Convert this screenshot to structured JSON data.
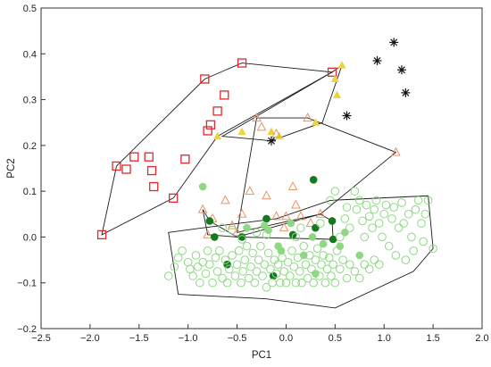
{
  "chart_data": {
    "type": "scatter",
    "title": "",
    "xlabel": "PC1",
    "ylabel": "PC2",
    "xlim": [
      -2.5,
      2.0
    ],
    "ylim": [
      -0.2,
      0.5
    ],
    "xticks": [
      "−2.5",
      "−2.0",
      "−1.5",
      "−1.0",
      "−0.5",
      "0.0",
      "0.5",
      "1.0",
      "1.5",
      "2.0"
    ],
    "yticks": [
      "−0.2",
      "−0.1",
      "0.0",
      "0.1",
      "0.2",
      "0.3",
      "0.4",
      "0.5"
    ],
    "xtick_values": [
      -2.5,
      -2.0,
      -1.5,
      -1.0,
      -0.5,
      0.0,
      0.5,
      1.0,
      1.5,
      2.0
    ],
    "ytick_values": [
      -0.2,
      -0.1,
      0.0,
      0.1,
      0.2,
      0.3,
      0.4,
      0.5
    ],
    "grid": false,
    "legend": "none",
    "series": [
      {
        "marker": "square-open",
        "color": "#e0282d",
        "points": [
          [
            -1.88,
            0.005
          ],
          [
            -1.73,
            0.155
          ],
          [
            -1.63,
            0.148
          ],
          [
            -1.55,
            0.175
          ],
          [
            -1.4,
            0.175
          ],
          [
            -1.37,
            0.145
          ],
          [
            -1.35,
            0.11
          ],
          [
            -1.15,
            0.085
          ],
          [
            -1.03,
            0.17
          ],
          [
            -0.83,
            0.345
          ],
          [
            -0.8,
            0.232
          ],
          [
            -0.77,
            0.245
          ],
          [
            -0.7,
            0.275
          ],
          [
            -0.63,
            0.31
          ],
          [
            -0.45,
            0.38
          ],
          [
            0.47,
            0.36
          ]
        ]
      },
      {
        "marker": "asterisk",
        "color": "#111111",
        "points": [
          [
            -0.15,
            0.21
          ],
          [
            0.62,
            0.265
          ],
          [
            0.93,
            0.385
          ],
          [
            1.1,
            0.425
          ],
          [
            1.18,
            0.365
          ],
          [
            1.22,
            0.315
          ]
        ]
      },
      {
        "marker": "triangle-filled",
        "color": "#f0d23c",
        "points": [
          [
            -0.7,
            0.22
          ],
          [
            -0.45,
            0.23
          ],
          [
            -0.15,
            0.23
          ],
          [
            -0.07,
            0.22
          ],
          [
            0.3,
            0.25
          ],
          [
            0.5,
            0.345
          ],
          [
            0.52,
            0.31
          ],
          [
            0.57,
            0.375
          ]
        ]
      },
      {
        "marker": "triangle-open",
        "color": "#e8946a",
        "points": [
          [
            -0.3,
            0.26
          ],
          [
            -0.25,
            0.24
          ],
          [
            -0.1,
            0.225
          ],
          [
            0.22,
            0.26
          ],
          [
            1.12,
            0.185
          ],
          [
            -0.85,
            0.06
          ],
          [
            -0.75,
            0.04
          ],
          [
            -0.62,
            0.08
          ],
          [
            -0.55,
            0.025
          ],
          [
            -0.45,
            0.05
          ],
          [
            -0.5,
            0.01
          ],
          [
            -0.37,
            0.1
          ],
          [
            -0.2,
            0.09
          ],
          [
            -0.1,
            0.045
          ],
          [
            -0.02,
            0.02
          ],
          [
            0.0,
            0.045
          ],
          [
            0.07,
            0.11
          ],
          [
            0.1,
            0.07
          ],
          [
            0.15,
            0.045
          ],
          [
            0.25,
            0.03
          ],
          [
            0.35,
            0.05
          ],
          [
            -0.8,
            0.005
          ]
        ]
      },
      {
        "marker": "circle-filled",
        "color": "#157a1e",
        "points": [
          [
            -0.78,
            0.035
          ],
          [
            -0.73,
            0.0
          ],
          [
            -0.6,
            -0.06
          ],
          [
            -0.45,
            0.0
          ],
          [
            -0.2,
            0.04
          ],
          [
            -0.13,
            -0.085
          ],
          [
            0.07,
            0.005
          ],
          [
            0.28,
            0.125
          ],
          [
            0.3,
            0.02
          ],
          [
            0.47,
            0.035
          ],
          [
            0.48,
            -0.005
          ]
        ]
      },
      {
        "marker": "circle-filled",
        "color": "#8ed883",
        "points": [
          [
            -0.85,
            0.11
          ],
          [
            -0.4,
            0.02
          ],
          [
            -0.22,
            0.025
          ],
          [
            -0.18,
            0.015
          ],
          [
            0.05,
            0.03
          ],
          [
            0.27,
            0.0
          ],
          [
            0.38,
            -0.015
          ],
          [
            -0.08,
            -0.02
          ],
          [
            0.18,
            -0.04
          ],
          [
            0.55,
            -0.02
          ],
          [
            0.6,
            0.01
          ],
          [
            0.75,
            -0.04
          ],
          [
            -0.05,
            -0.03
          ],
          [
            0.3,
            -0.08
          ]
        ]
      },
      {
        "marker": "circle-open",
        "color": "#8ed883",
        "points": [
          [
            -1.2,
            -0.085
          ],
          [
            -1.14,
            -0.065
          ],
          [
            -1.1,
            -0.045
          ],
          [
            -1.06,
            -0.03
          ],
          [
            -1.0,
            -0.055
          ],
          [
            -0.98,
            -0.07
          ],
          [
            -0.95,
            -0.085
          ],
          [
            -0.92,
            -0.04
          ],
          [
            -0.9,
            -0.065
          ],
          [
            -0.88,
            -0.1
          ],
          [
            -0.85,
            -0.055
          ],
          [
            -0.82,
            -0.08
          ],
          [
            -0.8,
            -0.03
          ],
          [
            -0.78,
            -0.06
          ],
          [
            -0.75,
            -0.1
          ],
          [
            -0.72,
            -0.045
          ],
          [
            -0.7,
            -0.075
          ],
          [
            -0.68,
            -0.03
          ],
          [
            -0.65,
            -0.09
          ],
          [
            -0.62,
            -0.05
          ],
          [
            -0.6,
            -0.1
          ],
          [
            -0.58,
            -0.07
          ],
          [
            -0.55,
            -0.04
          ],
          [
            -0.52,
            -0.085
          ],
          [
            -0.5,
            -0.06
          ],
          [
            -0.48,
            -0.03
          ],
          [
            -0.46,
            -0.1
          ],
          [
            -0.44,
            -0.075
          ],
          [
            -0.42,
            -0.05
          ],
          [
            -0.4,
            -0.02
          ],
          [
            -0.38,
            -0.09
          ],
          [
            -0.36,
            -0.065
          ],
          [
            -0.34,
            -0.035
          ],
          [
            -0.32,
            -0.1
          ],
          [
            -0.3,
            -0.075
          ],
          [
            -0.28,
            -0.05
          ],
          [
            -0.26,
            -0.02
          ],
          [
            -0.24,
            -0.085
          ],
          [
            -0.22,
            -0.06
          ],
          [
            -0.2,
            -0.11
          ],
          [
            -0.18,
            -0.035
          ],
          [
            -0.16,
            -0.07
          ],
          [
            -0.14,
            -0.1
          ],
          [
            -0.12,
            -0.05
          ],
          [
            -0.1,
            -0.08
          ],
          [
            -0.08,
            -0.06
          ],
          [
            -0.06,
            -0.1
          ],
          [
            -0.04,
            -0.045
          ],
          [
            -0.02,
            -0.075
          ],
          [
            0.0,
            -0.1
          ],
          [
            0.02,
            -0.055
          ],
          [
            0.04,
            -0.085
          ],
          [
            0.06,
            -0.03
          ],
          [
            0.08,
            -0.065
          ],
          [
            0.1,
            -0.1
          ],
          [
            0.12,
            -0.045
          ],
          [
            0.14,
            -0.075
          ],
          [
            0.16,
            -0.1
          ],
          [
            0.18,
            -0.02
          ],
          [
            0.2,
            -0.06
          ],
          [
            0.22,
            -0.09
          ],
          [
            0.24,
            -0.04
          ],
          [
            0.26,
            -0.07
          ],
          [
            0.28,
            -0.1
          ],
          [
            0.3,
            -0.05
          ],
          [
            0.32,
            -0.025
          ],
          [
            0.34,
            -0.085
          ],
          [
            0.36,
            -0.06
          ],
          [
            0.38,
            -0.04
          ],
          [
            0.4,
            -0.1
          ],
          [
            0.42,
            -0.07
          ],
          [
            0.44,
            -0.045
          ],
          [
            0.46,
            -0.085
          ],
          [
            0.48,
            -0.06
          ],
          [
            0.5,
            -0.1
          ],
          [
            0.52,
            -0.03
          ],
          [
            0.55,
            -0.07
          ],
          [
            0.58,
            -0.05
          ],
          [
            0.62,
            -0.09
          ],
          [
            0.65,
            -0.06
          ],
          [
            0.7,
            -0.075
          ],
          [
            0.75,
            -0.09
          ],
          [
            0.8,
            -0.06
          ],
          [
            0.85,
            -0.07
          ],
          [
            0.9,
            -0.05
          ],
          [
            0.95,
            -0.06
          ],
          [
            -0.65,
            0.02
          ],
          [
            -0.55,
            0.015
          ],
          [
            -0.45,
            -0.005
          ],
          [
            -0.3,
            0.01
          ],
          [
            -0.2,
            0.005
          ],
          [
            0.1,
            0.0
          ],
          [
            0.15,
            0.02
          ],
          [
            0.35,
            0.03
          ],
          [
            0.45,
            0.08
          ],
          [
            0.5,
            0.1
          ],
          [
            0.55,
            0.0
          ],
          [
            0.6,
            0.04
          ],
          [
            0.62,
            0.065
          ],
          [
            0.65,
            0.02
          ],
          [
            0.7,
            0.1
          ],
          [
            0.72,
            0.06
          ],
          [
            0.75,
            0.08
          ],
          [
            0.78,
            0.035
          ],
          [
            0.8,
            0.0
          ],
          [
            0.82,
            0.07
          ],
          [
            0.85,
            0.045
          ],
          [
            0.88,
            0.02
          ],
          [
            0.9,
            0.06
          ],
          [
            0.92,
            0.08
          ],
          [
            0.95,
            0.03
          ],
          [
            0.98,
            0.0
          ],
          [
            1.0,
            0.05
          ],
          [
            1.02,
            0.07
          ],
          [
            1.05,
            -0.02
          ],
          [
            1.08,
            0.04
          ],
          [
            1.1,
            0.065
          ],
          [
            1.12,
            -0.04
          ],
          [
            1.15,
            0.02
          ],
          [
            1.18,
            0.075
          ],
          [
            1.2,
            0.03
          ],
          [
            1.22,
            -0.05
          ],
          [
            1.25,
            0.05
          ],
          [
            1.28,
            0.0
          ],
          [
            1.3,
            -0.03
          ],
          [
            1.32,
            0.06
          ],
          [
            1.35,
            0.08
          ],
          [
            1.38,
            0.03
          ],
          [
            1.4,
            -0.01
          ],
          [
            1.42,
            0.05
          ],
          [
            1.45,
            0.08
          ],
          [
            1.5,
            -0.025
          ]
        ]
      }
    ],
    "hulls": [
      {
        "points": [
          [
            -1.88,
            0.005
          ],
          [
            -1.73,
            0.155
          ],
          [
            -0.83,
            0.345
          ],
          [
            -0.45,
            0.38
          ],
          [
            0.47,
            0.36
          ],
          [
            -0.7,
            0.22
          ],
          [
            -1.15,
            0.085
          ]
        ]
      },
      {
        "points": [
          [
            -0.65,
            0.22
          ],
          [
            0.47,
            0.36
          ],
          [
            0.57,
            0.375
          ],
          [
            0.37,
            0.25
          ],
          [
            -0.15,
            0.21
          ]
        ]
      },
      {
        "points": [
          [
            -0.3,
            0.26
          ],
          [
            0.22,
            0.26
          ],
          [
            1.12,
            0.185
          ],
          [
            0.35,
            0.05
          ],
          [
            -0.5,
            0.01
          ]
        ]
      },
      {
        "points": [
          [
            -0.85,
            0.06
          ],
          [
            -0.78,
            0.035
          ],
          [
            -0.5,
            0.0
          ],
          [
            0.35,
            0.05
          ],
          [
            0.47,
            0.035
          ],
          [
            0.48,
            -0.005
          ],
          [
            -0.5,
            0.0
          ],
          [
            -0.8,
            0.005
          ]
        ]
      },
      {
        "points": [
          [
            -1.2,
            0.01
          ],
          [
            -0.85,
            0.02
          ],
          [
            -0.1,
            0.04
          ],
          [
            0.45,
            0.08
          ],
          [
            1.45,
            0.09
          ],
          [
            1.5,
            -0.025
          ],
          [
            1.3,
            -0.075
          ],
          [
            0.5,
            -0.155
          ],
          [
            -0.2,
            -0.135
          ],
          [
            -1.1,
            -0.125
          ]
        ]
      }
    ]
  }
}
